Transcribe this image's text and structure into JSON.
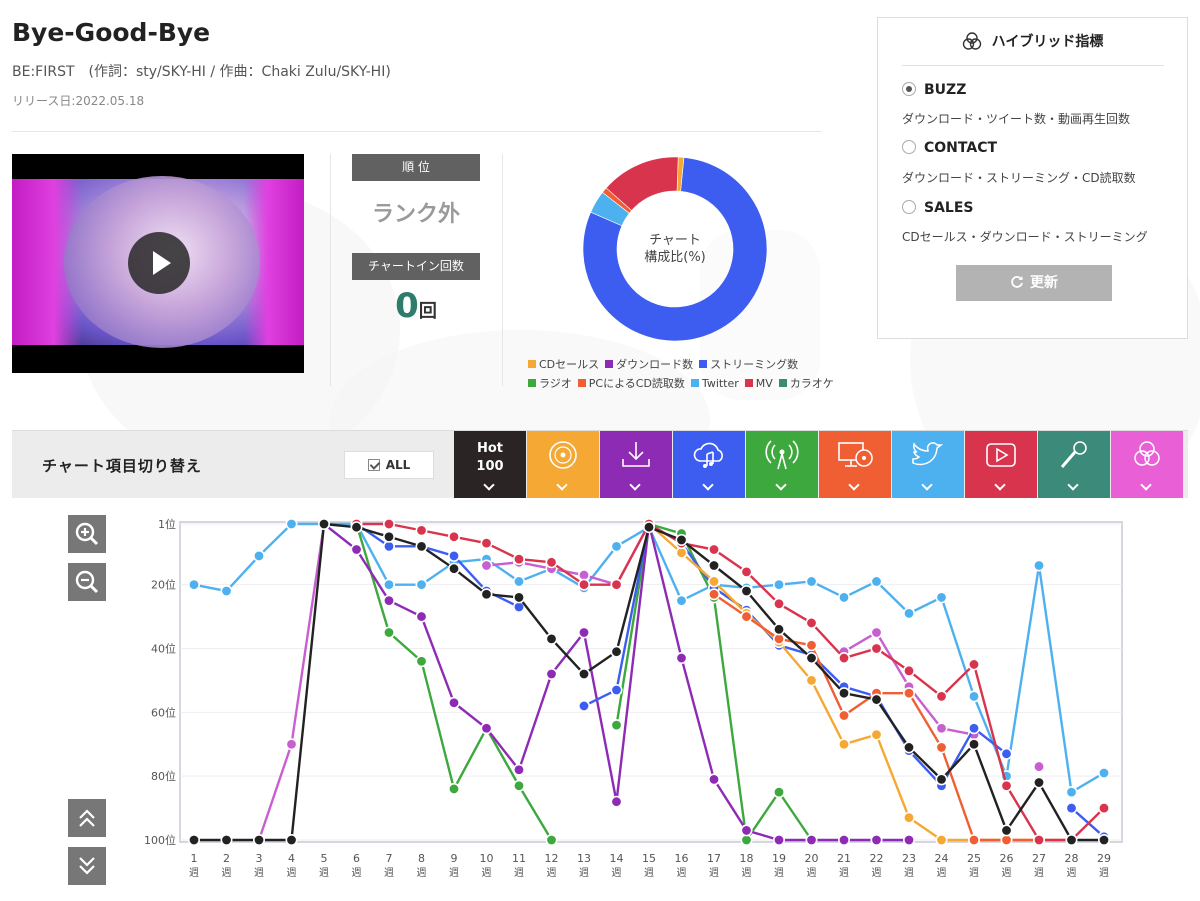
{
  "song": {
    "title": "Bye-Good-Bye",
    "credits": "BE:FIRST　(作詞：sty/SKY-HI / 作曲：Chaki Zulu/SKY-HI)",
    "release": "リリース日:2022.05.18"
  },
  "rank": {
    "label": "順 位",
    "value": "ランク外",
    "count_label": "チャートイン回数",
    "count_value": "0",
    "count_unit": "回"
  },
  "donut": {
    "center_line1": "チャート",
    "center_line2": "構成比(%)",
    "slices": [
      {
        "name": "CDセールス",
        "value": 1,
        "color": "#f5a833"
      },
      {
        "name": "ストリーミング数",
        "value": 80,
        "color": "#3d5df0"
      },
      {
        "name": "Twitter",
        "value": 4,
        "color": "#4db1f0"
      },
      {
        "name": "PCによるCD読取数",
        "value": 1,
        "color": "#ef5f33"
      },
      {
        "name": "MV",
        "value": 14,
        "color": "#d9344d"
      }
    ]
  },
  "legend": {
    "row1": [
      {
        "label": "CDセールス",
        "color": "#f5a833"
      },
      {
        "label": "ダウンロード数",
        "color": "#8e2bb5"
      },
      {
        "label": "ストリーミング数",
        "color": "#3d5df0"
      }
    ],
    "row2": [
      {
        "label": "ラジオ",
        "color": "#3da83d"
      },
      {
        "label": "PCによるCD読取数",
        "color": "#ef5f33"
      },
      {
        "label": "Twitter",
        "color": "#4db1f0"
      },
      {
        "label": "MV",
        "color": "#d9344d"
      },
      {
        "label": "カラオケ",
        "color": "#3b8a7a"
      }
    ]
  },
  "hybrid": {
    "title": "ハイブリッド指標",
    "options": [
      {
        "label": "BUZZ",
        "desc": "ダウンロード・ツイート数・動画再生回数",
        "selected": true
      },
      {
        "label": "CONTACT",
        "desc": "ダウンロード・ストリーミング・CD読取数",
        "selected": false
      },
      {
        "label": "SALES",
        "desc": "CDセールス・ダウンロード・ストリーミング",
        "selected": false
      }
    ],
    "refresh_label": "更新"
  },
  "switcher": {
    "title": "チャート項目切り替え",
    "all_label": "ALL",
    "tabs": [
      {
        "name": "hot100",
        "line1": "Hot",
        "line2": "100",
        "color": "#2a2424",
        "icon": "hot100-text"
      },
      {
        "name": "cd-sales",
        "color": "#f5a833",
        "icon": "disc-icon"
      },
      {
        "name": "download",
        "color": "#8e2bb5",
        "icon": "download-icon"
      },
      {
        "name": "streaming",
        "color": "#3d5df0",
        "icon": "cloud-music-icon"
      },
      {
        "name": "radio",
        "color": "#3da83d",
        "icon": "radio-tower-icon"
      },
      {
        "name": "pc-cd-read",
        "color": "#ef5f33",
        "icon": "monitor-disc-icon"
      },
      {
        "name": "twitter",
        "color": "#4db1f0",
        "icon": "twitter-bird-icon"
      },
      {
        "name": "mv",
        "color": "#d9344d",
        "icon": "play-screen-icon"
      },
      {
        "name": "karaoke",
        "color": "#3b8a7a",
        "icon": "microphone-icon"
      },
      {
        "name": "hybrid",
        "color": "#e85fd6",
        "icon": "venn-circles-icon"
      }
    ]
  },
  "chart_data": {
    "type": "line",
    "title": "",
    "xlabel": "",
    "ylabel": "",
    "y_inverted": true,
    "ylim": [
      1,
      100
    ],
    "yticks": [
      {
        "value": 1,
        "label": "1位"
      },
      {
        "value": 20,
        "label": "20位"
      },
      {
        "value": 40,
        "label": "40位"
      },
      {
        "value": 60,
        "label": "60位"
      },
      {
        "value": 80,
        "label": "80位"
      },
      {
        "value": 100,
        "label": "100位"
      }
    ],
    "week_unit": "週",
    "x": [
      1,
      2,
      3,
      4,
      5,
      6,
      7,
      8,
      9,
      10,
      11,
      12,
      13,
      14,
      15,
      16,
      17,
      18,
      19,
      20,
      21,
      22,
      23,
      24,
      25,
      26,
      27,
      28,
      29
    ],
    "grid": true,
    "series": [
      {
        "name": "Twitter",
        "color": "#4db1f0",
        "values": [
          20,
          22,
          11,
          1,
          1,
          1,
          20,
          20,
          13,
          12,
          19,
          15,
          21,
          8,
          2,
          25,
          20,
          21,
          20,
          19,
          24,
          19,
          29,
          24,
          55,
          80,
          14,
          85,
          79
        ]
      },
      {
        "name": "ハイブリッド",
        "color": "#c85fd0",
        "values": [
          null,
          null,
          100,
          70,
          1,
          null,
          null,
          null,
          null,
          14,
          13,
          15,
          17,
          20,
          1,
          null,
          null,
          null,
          null,
          null,
          41,
          35,
          52,
          65,
          67,
          null,
          77,
          null,
          null
        ]
      },
      {
        "name": "ラジオ",
        "color": "#3da83d",
        "values": [
          null,
          null,
          null,
          null,
          null,
          1,
          35,
          44,
          84,
          65,
          83,
          100,
          null,
          64,
          1,
          4,
          24,
          100,
          85,
          100,
          null,
          null,
          null,
          null,
          null,
          null,
          null,
          null,
          null
        ]
      },
      {
        "name": "ダウンロード数",
        "color": "#8e2bb5",
        "values": [
          null,
          null,
          null,
          null,
          1,
          9,
          25,
          30,
          57,
          65,
          78,
          48,
          35,
          88,
          1,
          43,
          81,
          97,
          100,
          100,
          100,
          100,
          100,
          null,
          null,
          null,
          null,
          null,
          null
        ]
      },
      {
        "name": "ストリーミング数",
        "color": "#3d5df0",
        "values": [
          null,
          null,
          null,
          null,
          null,
          1,
          8,
          8,
          11,
          22,
          27,
          null,
          58,
          53,
          1,
          7,
          21,
          28,
          39,
          42,
          52,
          55,
          72,
          83,
          65,
          73,
          null,
          90,
          99
        ]
      },
      {
        "name": "CDセールス",
        "color": "#f5a833",
        "values": [
          null,
          null,
          null,
          null,
          null,
          null,
          null,
          null,
          null,
          null,
          null,
          null,
          null,
          null,
          1,
          10,
          19,
          29,
          38,
          50,
          70,
          67,
          93,
          100,
          100,
          100,
          100,
          100,
          null
        ]
      },
      {
        "name": "PCによるCD読取数",
        "color": "#ef5f33",
        "values": [
          null,
          null,
          null,
          null,
          null,
          null,
          null,
          null,
          null,
          null,
          null,
          null,
          null,
          null,
          null,
          null,
          23,
          30,
          37,
          39,
          61,
          54,
          54,
          71,
          100,
          100,
          100,
          null,
          null
        ]
      },
      {
        "name": "MV",
        "color": "#d9344d",
        "values": [
          null,
          null,
          null,
          null,
          null,
          1,
          1,
          3,
          5,
          7,
          12,
          13,
          20,
          20,
          1,
          7,
          9,
          16,
          26,
          32,
          43,
          40,
          47,
          55,
          45,
          83,
          100,
          100,
          90
        ]
      },
      {
        "name": "Hot 100",
        "color": "#222222",
        "values": [
          100,
          100,
          100,
          100,
          1,
          2,
          5,
          8,
          15,
          23,
          24,
          37,
          48,
          41,
          2,
          6,
          14,
          22,
          34,
          43,
          54,
          56,
          71,
          81,
          70,
          97,
          82,
          100,
          100
        ]
      }
    ]
  }
}
